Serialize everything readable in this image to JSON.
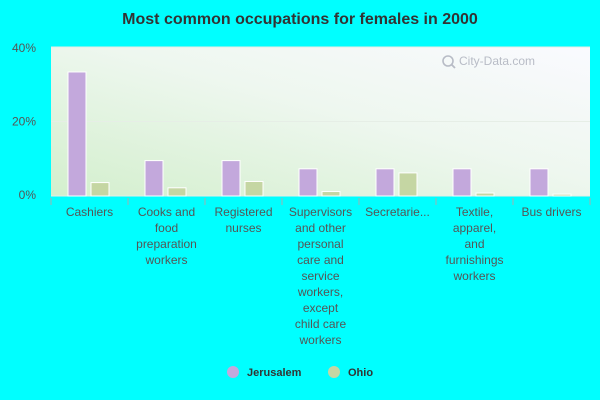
{
  "chart_data": {
    "type": "bar",
    "title": "Most common occupations for females in 2000",
    "categories": [
      [
        "Cashiers"
      ],
      [
        "Cooks and",
        "food",
        "preparation",
        "workers"
      ],
      [
        "Registered",
        "nurses"
      ],
      [
        "Supervisors",
        "and other",
        "personal",
        "care and",
        "service",
        "workers,",
        "except",
        "child care",
        "workers"
      ],
      [
        "Secretarie..."
      ],
      [
        "Textile,",
        "apparel,",
        "and",
        "furnishings",
        "workers"
      ],
      [
        "Bus drivers"
      ]
    ],
    "series": [
      {
        "name": "Jerusalem",
        "color": "#c3a8dc",
        "values": [
          33.3,
          9.5,
          9.5,
          7.3,
          7.3,
          7.3,
          7.3
        ]
      },
      {
        "name": "Ohio",
        "color": "#c5d6a3",
        "values": [
          3.6,
          2.2,
          3.9,
          1.2,
          6.2,
          0.8,
          0.5
        ]
      }
    ],
    "y_ticks": [
      "0%",
      "20%",
      "40%"
    ],
    "ylim": [
      0,
      40
    ],
    "grid": true,
    "legend": "bottom-center"
  },
  "watermark": {
    "text": "City-Data.com",
    "icon": "magnifier-icon"
  }
}
